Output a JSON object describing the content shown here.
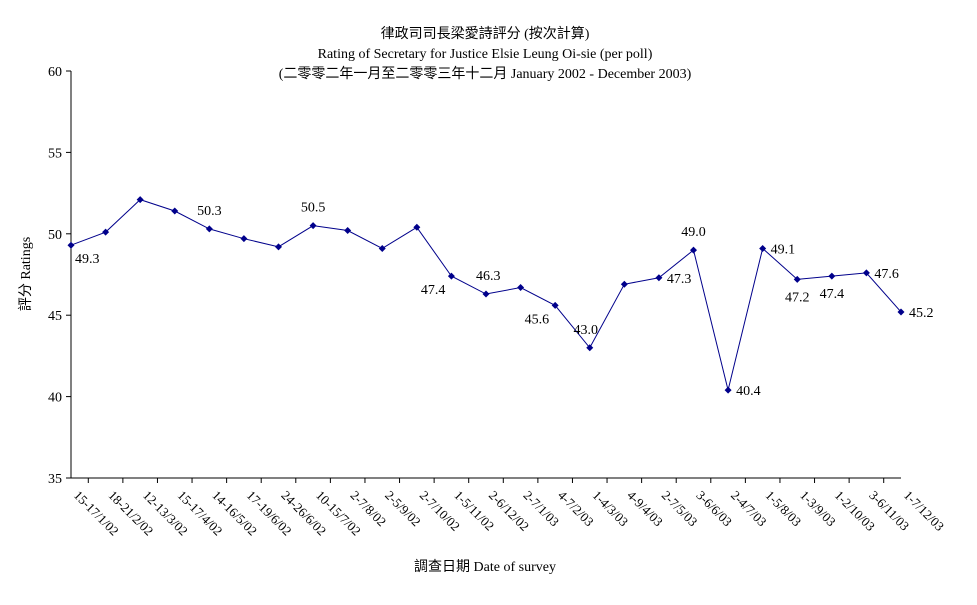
{
  "chart_data": {
    "type": "line",
    "title_lines": [
      "律政司司長梁愛詩評分 (按次計算)",
      "Rating of Secretary for Justice Elsie Leung Oi-sie  (per poll)",
      "(二零零二年一月至二零零三年十二月 January 2002 - December 2003)"
    ],
    "xlabel": "調查日期 Date of survey",
    "ylabel": "評分 Ratings",
    "ylim": [
      35,
      60
    ],
    "yticks": [
      35,
      40,
      45,
      50,
      55,
      60
    ],
    "grid": false,
    "categories": [
      "15-17/1/02",
      "18-21/2/02",
      "12-13/3/02",
      "15-17/4/02",
      "14-16/5/02",
      "17-19/6/02",
      "24-26/6/02",
      "10-15/7/02",
      "2-7/8/02",
      "2-5/9/02",
      "2-7/10/02",
      "1-5/11/02",
      "2-6/12/02",
      "2-7/1/03",
      "4-7/2/03",
      "1-4/3/03",
      "4-9/4/03",
      "2-7/5/03",
      "3-6/6/03",
      "2-4/7/03",
      "1-5/8/03",
      "1-3/9/03",
      "1-2/10/03",
      "3-6/11/03",
      "1-7/12/03"
    ],
    "series": [
      {
        "values": [
          49.3,
          50.1,
          52.1,
          51.4,
          50.3,
          49.7,
          49.2,
          50.5,
          50.2,
          49.1,
          50.4,
          47.4,
          46.3,
          46.7,
          45.6,
          43.0,
          46.9,
          47.3,
          49.0,
          40.4,
          49.1,
          47.2,
          47.4,
          47.6,
          45.2
        ]
      }
    ],
    "data_labels": [
      {
        "index": 0,
        "text": "49.3",
        "placement": "below-right"
      },
      {
        "index": 4,
        "text": "50.3",
        "placement": "above"
      },
      {
        "index": 7,
        "text": "50.5",
        "placement": "above"
      },
      {
        "index": 11,
        "text": "47.4",
        "placement": "below-left"
      },
      {
        "index": 12,
        "text": "46.3",
        "placement": "above-right"
      },
      {
        "index": 14,
        "text": "45.6",
        "placement": "below-left"
      },
      {
        "index": 15,
        "text": "43.0",
        "placement": "above-left"
      },
      {
        "index": 17,
        "text": "47.3",
        "placement": "right"
      },
      {
        "index": 18,
        "text": "49.0",
        "placement": "above"
      },
      {
        "index": 19,
        "text": "40.4",
        "placement": "right"
      },
      {
        "index": 20,
        "text": "49.1",
        "placement": "right"
      },
      {
        "index": 21,
        "text": "47.2",
        "placement": "below"
      },
      {
        "index": 22,
        "text": "47.4",
        "placement": "below"
      },
      {
        "index": 23,
        "text": "47.6",
        "placement": "right"
      },
      {
        "index": 24,
        "text": "45.2",
        "placement": "right"
      }
    ],
    "line_color": "#00008b",
    "marker": "diamond",
    "axis_color": "#000000"
  }
}
